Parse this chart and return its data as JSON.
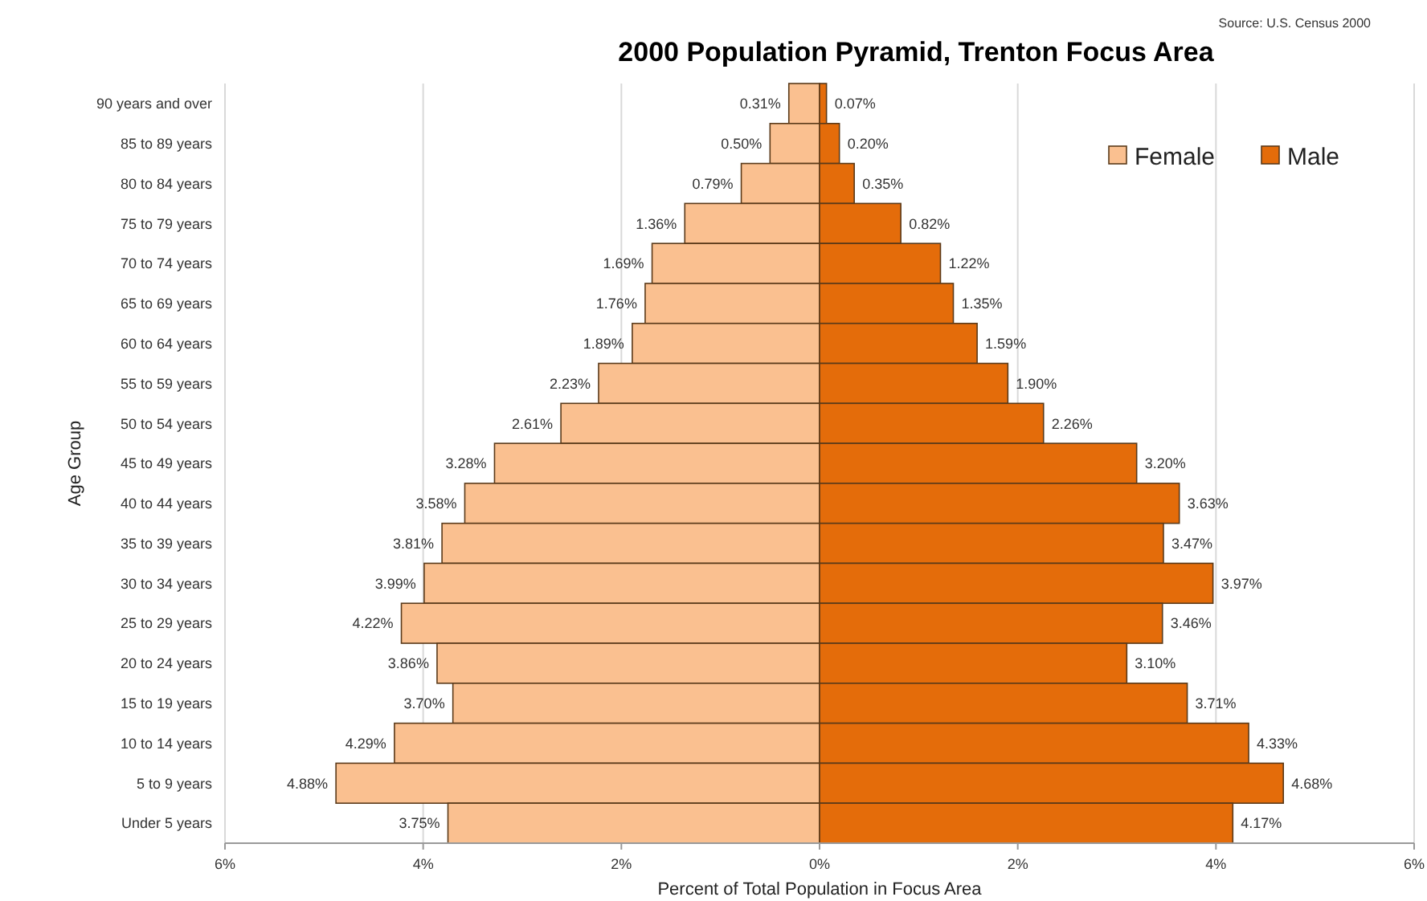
{
  "chart_data": {
    "type": "bar",
    "orientation": "horizontal",
    "title": "2000 Population Pyramid, Trenton Focus Area",
    "xlabel": "Percent of Total Population in Focus Area",
    "ylabel": "Age Group",
    "annotations": [
      "Source: U.S. Census 2000"
    ],
    "categories": [
      "90 years and over",
      "85 to 89 years",
      "80 to 84 years",
      "75 to 79 years",
      "70 to 74 years",
      "65 to 69 years",
      "60 to 64 years",
      "55 to 59 years",
      "50 to 54 years",
      "45 to 49 years",
      "40 to 44 years",
      "35 to 39 years",
      "30 to 34 years",
      "25 to 29 years",
      "20 to 24 years",
      "15 to 19 years",
      "10 to 14 years",
      "5 to 9 years",
      "Under 5 years"
    ],
    "series": [
      {
        "name": "Female",
        "color": "#fac090",
        "values": [
          0.31,
          0.5,
          0.79,
          1.36,
          1.69,
          1.76,
          1.89,
          2.23,
          2.61,
          3.28,
          3.58,
          3.81,
          3.99,
          4.22,
          3.86,
          3.7,
          4.29,
          4.88,
          3.75
        ],
        "base": [
          -0.31,
          -0.5,
          -0.79,
          -1.36,
          -1.69,
          -1.76,
          -1.89,
          -2.23,
          -2.61,
          -3.28,
          -3.58,
          -3.81,
          -3.99,
          -4.22,
          -3.86,
          -3.7,
          -4.29,
          -4.88,
          -3.75
        ],
        "value_labels": [
          "0.31%",
          "0.50%",
          "0.79%",
          "1.36%",
          "1.69%",
          "1.76%",
          "1.89%",
          "2.23%",
          "2.61%",
          "3.28%",
          "3.58%",
          "3.81%",
          "3.99%",
          "4.22%",
          "3.86%",
          "3.70%",
          "4.29%",
          "4.88%",
          "3.75%"
        ]
      },
      {
        "name": "Male",
        "color": "#e46c0a",
        "values": [
          0.07,
          0.2,
          0.35,
          0.82,
          1.22,
          1.35,
          1.59,
          1.9,
          2.26,
          3.2,
          3.63,
          3.47,
          3.97,
          3.46,
          3.1,
          3.71,
          4.33,
          4.68,
          4.17
        ],
        "value_labels": [
          "0.07%",
          "0.20%",
          "0.35%",
          "0.82%",
          "1.22%",
          "1.35%",
          "1.59%",
          "1.90%",
          "2.26%",
          "3.20%",
          "3.63%",
          "3.47%",
          "3.97%",
          "3.46%",
          "3.10%",
          "3.71%",
          "4.33%",
          "4.68%",
          "4.17%"
        ]
      }
    ],
    "xlim": [
      -6,
      6
    ],
    "xticks": [
      {
        "value": -6,
        "label": "6%"
      },
      {
        "value": -4,
        "label": "4%"
      },
      {
        "value": -2,
        "label": "2%"
      },
      {
        "value": 0,
        "label": "0%"
      },
      {
        "value": 2,
        "label": "2%"
      },
      {
        "value": 4,
        "label": "4%"
      },
      {
        "value": 6,
        "label": "6%"
      }
    ],
    "grid": "x",
    "legend": "top right"
  }
}
